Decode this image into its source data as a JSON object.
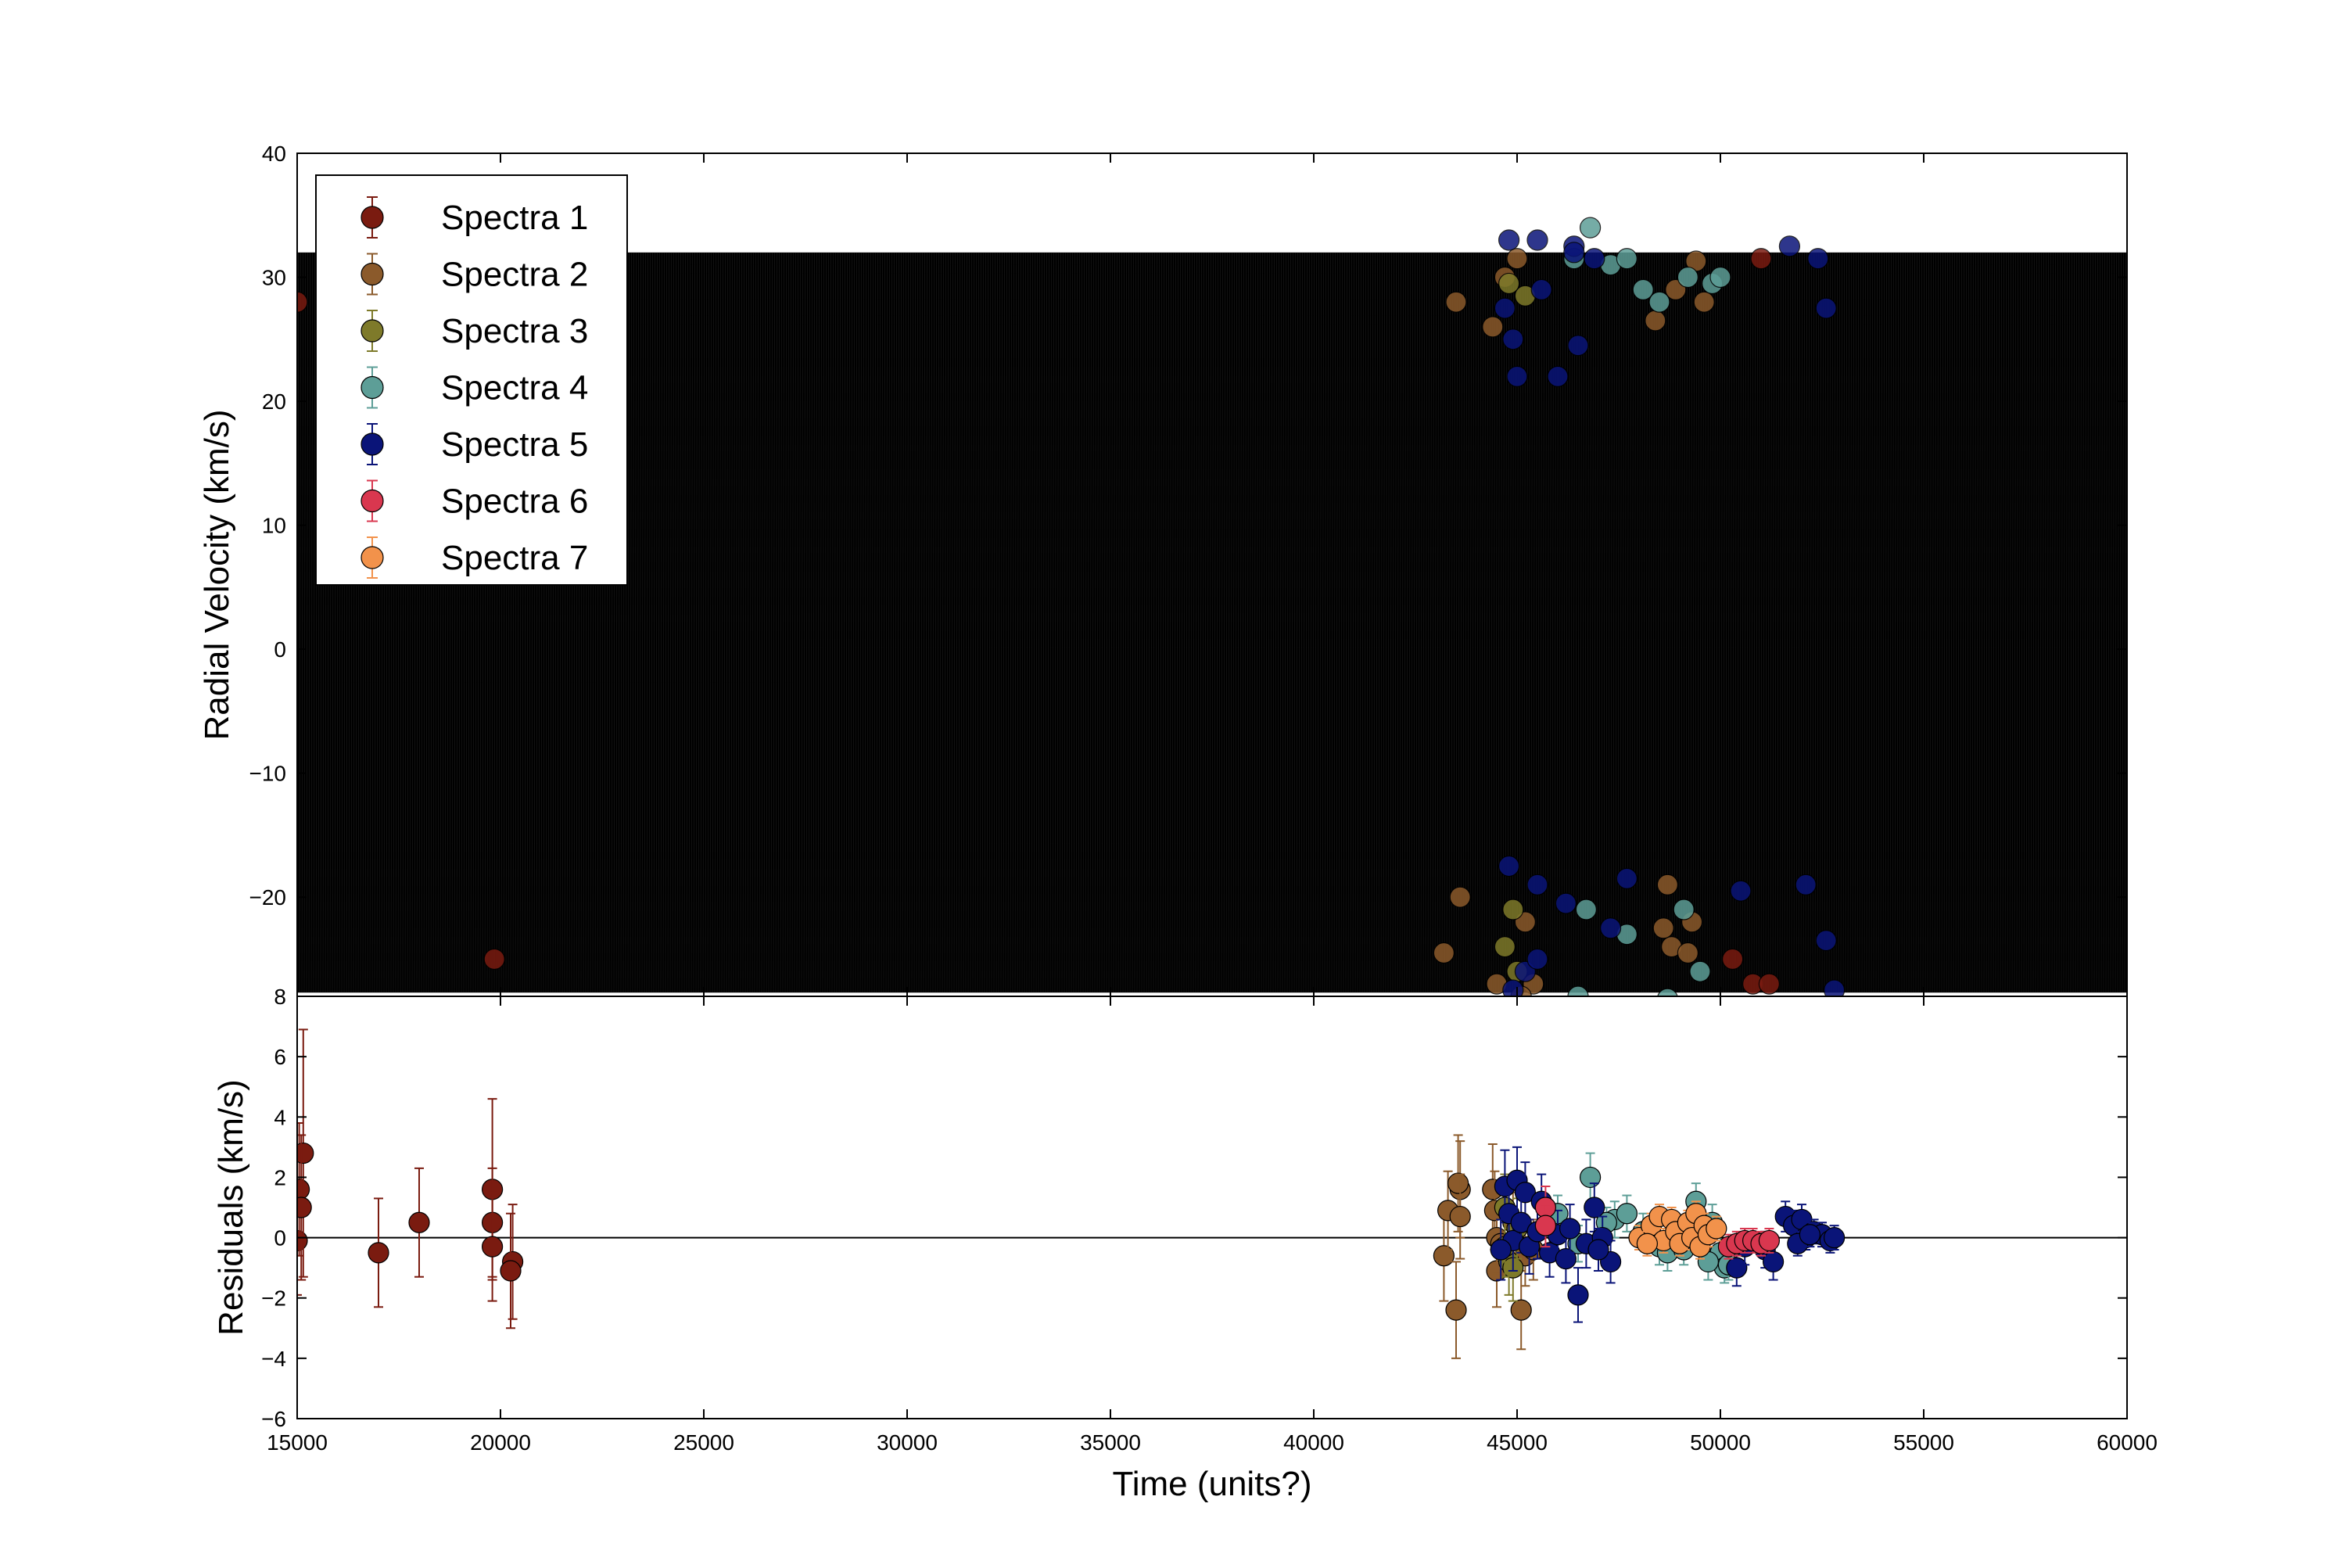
{
  "chart_data": [
    {
      "id": "rv",
      "type": "scatter",
      "ylabel": "Radial Velocity (km/s)",
      "xlim": [
        15000,
        60000
      ],
      "ylim": [
        -28,
        40
      ],
      "yticks": [
        -20,
        -10,
        0,
        10,
        20,
        30,
        40
      ],
      "grid": false,
      "legend_position": "top-left",
      "model_curve": {
        "min": -27.7,
        "max": 32.0,
        "color": "#000000"
      },
      "series": [
        {
          "name": "Spectra 1",
          "color": "#7a1b10",
          "points": [
            [
              15000,
              28
            ],
            [
              19850,
              -25
            ],
            [
              51000,
              31.5
            ],
            [
              50800,
              -27
            ],
            [
              51200,
              -27
            ],
            [
              50300,
              -25
            ]
          ]
        },
        {
          "name": "Spectra 2",
          "color": "#8b5a2b",
          "points": [
            [
              43500,
              28
            ],
            [
              44700,
              30
            ],
            [
              45000,
              31.5
            ],
            [
              45400,
              -27
            ],
            [
              44500,
              -27
            ],
            [
              43600,
              -20
            ],
            [
              43200,
              -24.5
            ],
            [
              45100,
              -28
            ],
            [
              48400,
              26.5
            ],
            [
              48700,
              -19
            ],
            [
              48900,
              29
            ],
            [
              49400,
              31.3
            ],
            [
              49300,
              -22
            ],
            [
              48800,
              -24
            ],
            [
              49200,
              -24.5
            ],
            [
              44400,
              26
            ],
            [
              49600,
              28
            ],
            [
              45200,
              -22
            ],
            [
              48600,
              -22.5
            ]
          ]
        },
        {
          "name": "Spectra 3",
          "color": "#7e7a2a",
          "points": [
            [
              44800,
              29.5
            ],
            [
              45000,
              -26
            ],
            [
              44700,
              -24
            ],
            [
              45200,
              28.5
            ],
            [
              44900,
              -21
            ]
          ]
        },
        {
          "name": "Spectra 4",
          "color": "#5d9e97",
          "points": [
            [
              46800,
              34
            ],
            [
              46700,
              -21
            ],
            [
              46500,
              -28
            ],
            [
              47300,
              31
            ],
            [
              47700,
              31.5
            ],
            [
              48700,
              -28.2
            ],
            [
              48100,
              29
            ],
            [
              49200,
              30
            ],
            [
              49800,
              29.5
            ],
            [
              49500,
              -26
            ],
            [
              47700,
              -23
            ],
            [
              50000,
              30
            ],
            [
              49100,
              -21
            ],
            [
              46400,
              31.5
            ],
            [
              48500,
              28
            ]
          ]
        },
        {
          "name": "Spectra 5",
          "color": "#0a1478",
          "points": [
            [
              44800,
              33
            ],
            [
              45500,
              33
            ],
            [
              46400,
              32.5
            ],
            [
              46900,
              31.5
            ],
            [
              51700,
              32.5
            ],
            [
              52400,
              31.5
            ],
            [
              52600,
              27.5
            ],
            [
              44900,
              25
            ],
            [
              45600,
              29
            ],
            [
              46500,
              24.5
            ],
            [
              46400,
              32
            ],
            [
              52800,
              -27.5
            ],
            [
              52600,
              -23.5
            ],
            [
              52100,
              -19
            ],
            [
              50500,
              -19.5
            ],
            [
              47300,
              -22.5
            ],
            [
              47700,
              -18.5
            ],
            [
              45500,
              -19
            ],
            [
              44800,
              -17.5
            ],
            [
              45200,
              -26
            ],
            [
              44900,
              -27.5
            ],
            [
              45500,
              -25
            ],
            [
              46200,
              -20.5
            ],
            [
              45000,
              22
            ],
            [
              46000,
              22
            ],
            [
              44700,
              27.5
            ]
          ]
        },
        {
          "name": "Spectra 6",
          "color": "#d9374f",
          "points": []
        },
        {
          "name": "Spectra 7",
          "color": "#f2924b",
          "points": []
        }
      ]
    },
    {
      "id": "residuals",
      "type": "scatter",
      "xlabel": "Time (units?)",
      "ylabel": "Residuals (km/s)",
      "xlim": [
        15000,
        60000
      ],
      "ylim": [
        -6,
        8
      ],
      "yticks": [
        -6,
        -4,
        -2,
        0,
        2,
        4,
        6,
        8
      ],
      "xticks": [
        15000,
        20000,
        25000,
        30000,
        35000,
        40000,
        45000,
        50000,
        55000,
        60000
      ],
      "zero_line": true,
      "series": [
        {
          "name": "Spectra 1",
          "color": "#7a1b10",
          "points": [
            [
              15000,
              -0.1,
              1.8
            ],
            [
              15050,
              1.6,
              2.2
            ],
            [
              15150,
              2.8,
              4.1
            ],
            [
              15100,
              1.0,
              2.4
            ],
            [
              17000,
              -0.5,
              1.8
            ],
            [
              18000,
              0.5,
              1.8
            ],
            [
              19800,
              1.6,
              3.0
            ],
            [
              19800,
              0.5,
              1.8
            ],
            [
              19800,
              -0.3,
              1.8
            ],
            [
              20300,
              -0.8,
              1.9
            ],
            [
              20250,
              -1.1,
              1.9
            ]
          ]
        },
        {
          "name": "Spectra 2",
          "color": "#8b5a2b",
          "points": [
            [
              43200,
              -0.6,
              1.5
            ],
            [
              43300,
              0.9,
              1.3
            ],
            [
              43600,
              1.6,
              1.6
            ],
            [
              43550,
              1.8,
              1.6
            ],
            [
              43600,
              0.7,
              1.4
            ],
            [
              43500,
              -2.4,
              1.6
            ],
            [
              44400,
              1.6,
              1.5
            ],
            [
              44450,
              0.9,
              1.3
            ],
            [
              44500,
              -1.1,
              1.2
            ],
            [
              44500,
              0.0,
              1.2
            ],
            [
              44600,
              -0.2,
              1.0
            ],
            [
              45100,
              -2.4,
              1.3
            ],
            [
              45200,
              -0.6,
              1.0
            ],
            [
              45400,
              -0.4,
              1.0
            ],
            [
              44900,
              0.5,
              1.0
            ]
          ]
        },
        {
          "name": "Spectra 3",
          "color": "#7e7a2a",
          "points": [
            [
              44700,
              1.0,
              1.1
            ],
            [
              44800,
              -0.8,
              1.1
            ],
            [
              44900,
              -1.0,
              1.1
            ],
            [
              45000,
              0.3,
              1.0
            ],
            [
              44700,
              -0.3,
              1.0
            ]
          ]
        },
        {
          "name": "Spectra 4",
          "color": "#5d9e97",
          "points": [
            [
              46800,
              2.0,
              0.8
            ],
            [
              47400,
              0.6,
              0.6
            ],
            [
              47700,
              0.8,
              0.6
            ],
            [
              48100,
              0.2,
              0.6
            ],
            [
              48500,
              -0.3,
              0.6
            ],
            [
              48700,
              -0.5,
              0.6
            ],
            [
              49100,
              -0.4,
              0.5
            ],
            [
              49400,
              1.2,
              0.6
            ],
            [
              49800,
              0.5,
              0.6
            ],
            [
              50000,
              -0.5,
              0.6
            ],
            [
              50100,
              -1.0,
              0.5
            ],
            [
              47200,
              0.5,
              0.5
            ],
            [
              46500,
              -0.2,
              0.6
            ],
            [
              46000,
              0.8,
              0.6
            ],
            [
              49700,
              -0.8,
              0.6
            ],
            [
              50200,
              -0.9,
              0.5
            ]
          ]
        },
        {
          "name": "Spectra 5",
          "color": "#0a1478",
          "points": [
            [
              44700,
              1.7,
              1.2
            ],
            [
              44800,
              0.8,
              1.1
            ],
            [
              44900,
              -0.1,
              1.0
            ],
            [
              45000,
              1.9,
              1.1
            ],
            [
              45200,
              1.5,
              1.0
            ],
            [
              45100,
              0.5,
              1.0
            ],
            [
              45300,
              -0.3,
              0.9
            ],
            [
              45500,
              0.2,
              0.9
            ],
            [
              45800,
              -0.5,
              0.8
            ],
            [
              46000,
              0.1,
              0.8
            ],
            [
              46200,
              -0.7,
              0.8
            ],
            [
              46500,
              -1.9,
              0.9
            ],
            [
              46700,
              -0.2,
              0.8
            ],
            [
              46900,
              1.0,
              0.8
            ],
            [
              47100,
              0.0,
              0.7
            ],
            [
              47300,
              -0.8,
              0.7
            ],
            [
              50400,
              -1.0,
              0.6
            ],
            [
              50600,
              -0.3,
              0.6
            ],
            [
              51100,
              -0.4,
              0.6
            ],
            [
              51300,
              -0.8,
              0.6
            ],
            [
              51600,
              0.7,
              0.5
            ],
            [
              51800,
              0.4,
              0.5
            ],
            [
              52000,
              0.6,
              0.5
            ],
            [
              52100,
              0.0,
              0.4
            ],
            [
              52300,
              0.2,
              0.4
            ],
            [
              52500,
              0.1,
              0.4
            ],
            [
              52700,
              -0.1,
              0.4
            ],
            [
              52800,
              0.0,
              0.4
            ],
            [
              51900,
              -0.2,
              0.4
            ],
            [
              52200,
              0.1,
              0.4
            ],
            [
              46300,
              0.3,
              0.8
            ],
            [
              45600,
              1.2,
              0.9
            ],
            [
              47000,
              -0.4,
              0.7
            ],
            [
              44600,
              -0.4,
              1.0
            ]
          ]
        },
        {
          "name": "Spectra 6",
          "color": "#d9374f",
          "points": [
            [
              45700,
              1.0,
              0.7
            ],
            [
              45700,
              0.4,
              0.7
            ],
            [
              50200,
              -0.3,
              0.4
            ],
            [
              50400,
              -0.2,
              0.4
            ],
            [
              50600,
              -0.1,
              0.4
            ],
            [
              50800,
              -0.1,
              0.4
            ],
            [
              51000,
              -0.2,
              0.4
            ],
            [
              51200,
              -0.1,
              0.4
            ]
          ]
        },
        {
          "name": "Spectra 7",
          "color": "#f2924b",
          "points": [
            [
              48000,
              0.0,
              0.4
            ],
            [
              48300,
              0.4,
              0.4
            ],
            [
              48500,
              0.7,
              0.4
            ],
            [
              48600,
              -0.1,
              0.4
            ],
            [
              48800,
              0.6,
              0.4
            ],
            [
              48900,
              0.2,
              0.4
            ],
            [
              49000,
              -0.2,
              0.4
            ],
            [
              49200,
              0.5,
              0.4
            ],
            [
              49300,
              0.0,
              0.4
            ],
            [
              49400,
              0.8,
              0.4
            ],
            [
              49500,
              -0.3,
              0.4
            ],
            [
              49600,
              0.4,
              0.4
            ],
            [
              49700,
              0.1,
              0.4
            ],
            [
              49900,
              0.3,
              0.4
            ],
            [
              48200,
              -0.2,
              0.4
            ]
          ]
        }
      ]
    }
  ]
}
